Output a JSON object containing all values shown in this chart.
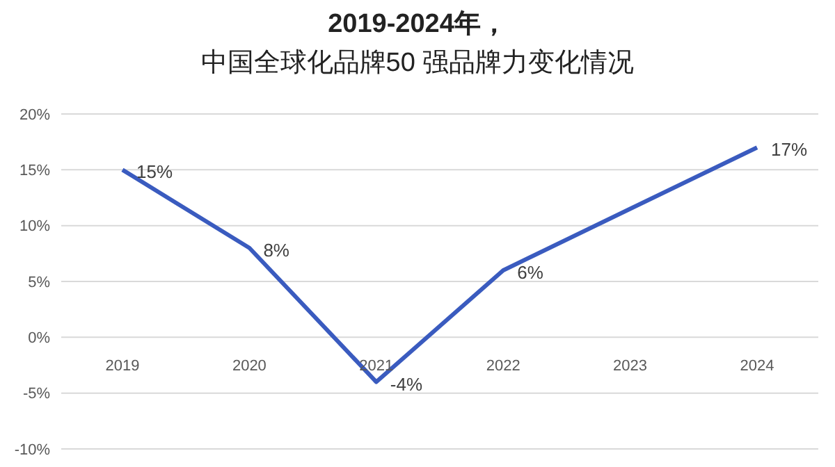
{
  "chart_data": {
    "type": "line",
    "title": "2019-2024年，中国全球化品牌50 强品牌力变化情况",
    "categories": [
      "2019",
      "2020",
      "2021",
      "2022",
      "2023",
      "2024"
    ],
    "series": [
      {
        "color": "#3a5bbf",
        "values": [
          15,
          8,
          -4,
          6,
          11.5,
          17
        ],
        "value_labels": [
          "15%",
          "8%",
          "-4%",
          "6%",
          null,
          "17%"
        ]
      }
    ],
    "ylim": [
      -10,
      20
    ],
    "yticks": [
      {
        "value": -10,
        "label": "-10%"
      },
      {
        "value": -5,
        "label": "-5%"
      },
      {
        "value": 0,
        "label": "0%"
      },
      {
        "value": 5,
        "label": "5%"
      },
      {
        "value": 10,
        "label": "10%"
      },
      {
        "value": 15,
        "label": "15%"
      },
      {
        "value": 20,
        "label": "20%"
      }
    ],
    "grid": "y",
    "marker": "none",
    "line_style": "solid"
  }
}
